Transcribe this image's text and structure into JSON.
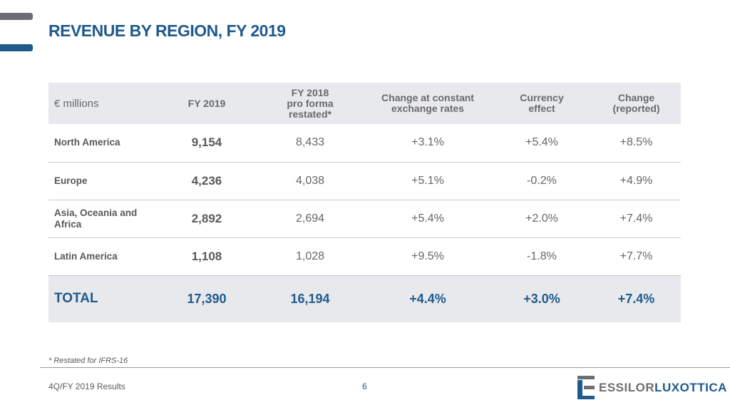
{
  "title": "REVENUE BY REGION, FY 2019",
  "table": {
    "headers": [
      "€ millions",
      "FY 2019",
      "FY 2018 pro forma restated*",
      "Change at constant exchange rates",
      "Currency effect",
      "Change (reported)"
    ],
    "header_lines": {
      "h2": [
        "FY 2018",
        "pro forma",
        "restated*"
      ],
      "h3": [
        "Change at constant",
        "exchange rates"
      ],
      "h4": [
        "Currency",
        "effect"
      ],
      "h5": [
        "Change",
        "(reported)"
      ]
    },
    "rows": [
      [
        "North America",
        "9,154",
        "8,433",
        "+3.1%",
        "+5.4%",
        "+8.5%"
      ],
      [
        "Europe",
        "4,236",
        "4,038",
        "+5.1%",
        "-0.2%",
        "+4.9%"
      ],
      [
        "Asia, Oceania and Africa",
        "2,892",
        "2,694",
        "+5.4%",
        "+2.0%",
        "+7.4%"
      ],
      [
        "Latin America",
        "1,108",
        "1,028",
        "+9.5%",
        "-1.8%",
        "+7.7%"
      ]
    ],
    "total": [
      "TOTAL",
      "17,390",
      "16,194",
      "+4.4%",
      "+3.0%",
      "+7.4%"
    ]
  },
  "footnote": "* Restated for IFRS-16",
  "footer": "4Q/FY 2019 Results",
  "page_number": "6",
  "logo": {
    "part1": "ESSILOR",
    "part2": "LUXOTTICA"
  },
  "colors": {
    "brand_blue": "#1f5a8c",
    "gray": "#6d6e71",
    "header_bg": "#e7e9ec"
  }
}
